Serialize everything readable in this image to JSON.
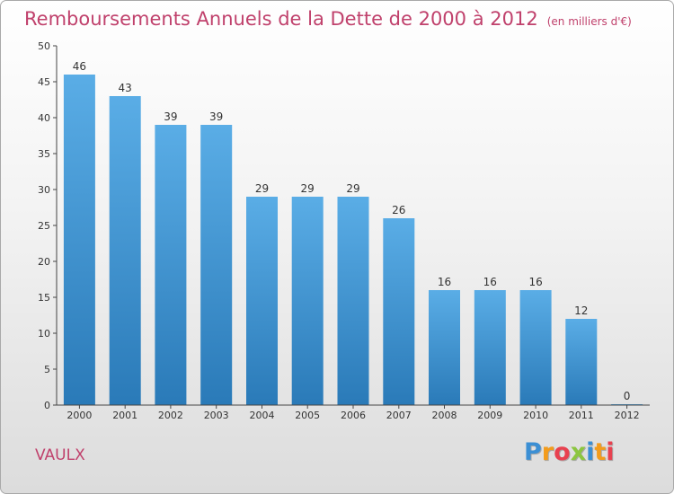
{
  "header": {
    "title": "Remboursements Annuels de la Dette de 2000 à 2012",
    "subtitle": "(en milliers d'€)"
  },
  "footer": {
    "commune": "VAULX",
    "logo_letters": [
      "P",
      "r",
      "o",
      "x",
      "i",
      "t",
      "i"
    ],
    "logo_colors": [
      "#3b8fd4",
      "#f39c1c",
      "#e8414f",
      "#8cc63f",
      "#3b8fd4",
      "#f39c1c",
      "#e8414f"
    ]
  },
  "chart_data": {
    "type": "bar",
    "categories": [
      "2000",
      "2001",
      "2002",
      "2003",
      "2004",
      "2005",
      "2006",
      "2007",
      "2008",
      "2009",
      "2010",
      "2011",
      "2012"
    ],
    "values": [
      46,
      43,
      39,
      39,
      29,
      29,
      29,
      26,
      16,
      16,
      16,
      12,
      0
    ],
    "title": "Remboursements Annuels de la Dette de 2000 à 2012",
    "subtitle": "(en milliers d'€)",
    "ylim": [
      0,
      50
    ],
    "yticks": [
      0,
      5,
      10,
      15,
      20,
      25,
      30,
      35,
      40,
      45,
      50
    ],
    "grid": false,
    "colors": {
      "bar_top": "#5aade6",
      "bar_bottom": "#2a7ab8",
      "axis": "#444444"
    }
  }
}
